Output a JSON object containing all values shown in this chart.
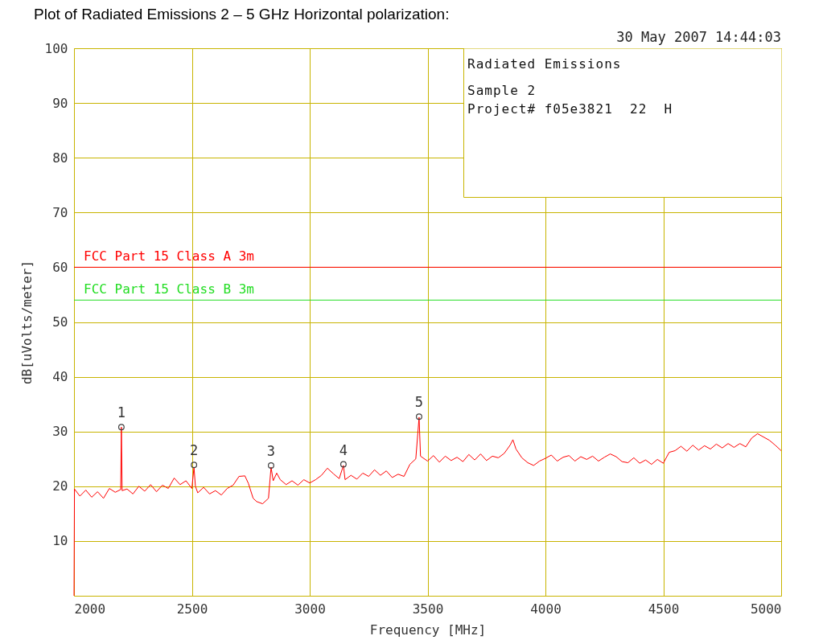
{
  "chart_data": {
    "type": "line",
    "title": "Plot of Radiated Emissions        2 – 5 GHz Horizontal polarization:",
    "xlabel": "Frequency [MHz]",
    "ylabel": "dB[uVolts/meter]",
    "xlim": [
      2000,
      5000
    ],
    "xticks": [
      2000,
      2500,
      3000,
      3500,
      4000,
      4500,
      5000
    ],
    "ylim": [
      0,
      100
    ],
    "yticks": [
      10,
      20,
      30,
      40,
      50,
      60,
      70,
      80,
      90,
      100
    ],
    "grid": true,
    "series": [
      {
        "color": "#ff0000",
        "marker": "none",
        "line_style": "solid",
        "x": [
          2000,
          2002,
          2025,
          2050,
          2075,
          2100,
          2125,
          2150,
          2175,
          2198,
          2201,
          2204,
          2225,
          2250,
          2275,
          2300,
          2325,
          2350,
          2375,
          2400,
          2425,
          2450,
          2475,
          2500,
          2509,
          2515,
          2525,
          2550,
          2575,
          2600,
          2625,
          2650,
          2675,
          2700,
          2725,
          2740,
          2760,
          2775,
          2800,
          2825,
          2836,
          2845,
          2860,
          2875,
          2900,
          2925,
          2950,
          2975,
          3000,
          3025,
          3050,
          3075,
          3100,
          3125,
          3143,
          3150,
          3175,
          3200,
          3225,
          3250,
          3275,
          3300,
          3325,
          3350,
          3375,
          3400,
          3425,
          3450,
          3464,
          3470,
          3500,
          3525,
          3550,
          3575,
          3600,
          3625,
          3650,
          3675,
          3700,
          3725,
          3750,
          3775,
          3800,
          3825,
          3850,
          3862,
          3875,
          3900,
          3925,
          3950,
          3975,
          4000,
          4025,
          4050,
          4075,
          4100,
          4125,
          4150,
          4175,
          4200,
          4225,
          4250,
          4275,
          4300,
          4325,
          4350,
          4375,
          4400,
          4425,
          4450,
          4475,
          4500,
          4525,
          4550,
          4575,
          4600,
          4625,
          4650,
          4675,
          4700,
          4725,
          4750,
          4775,
          4800,
          4825,
          4850,
          4875,
          4900,
          4925,
          4950,
          4975,
          5000
        ],
        "values": [
          0,
          19.5,
          18.2,
          19.3,
          18.0,
          19.0,
          17.8,
          19.6,
          18.9,
          19.4,
          30.8,
          19.2,
          19.5,
          18.6,
          20.0,
          19.1,
          20.3,
          19.0,
          20.2,
          19.6,
          21.5,
          20.3,
          21.0,
          19.6,
          23.5,
          20.0,
          18.8,
          19.8,
          18.6,
          19.2,
          18.4,
          19.6,
          20.2,
          21.8,
          21.9,
          20.5,
          17.8,
          17.2,
          16.8,
          17.8,
          23.5,
          21.0,
          22.4,
          21.2,
          20.3,
          21.0,
          20.2,
          21.2,
          20.6,
          21.2,
          22.0,
          23.3,
          22.3,
          21.4,
          23.8,
          21.2,
          22.0,
          21.3,
          22.4,
          21.8,
          23.0,
          22.0,
          22.8,
          21.6,
          22.2,
          21.8,
          24.0,
          25.0,
          32.6,
          25.5,
          24.6,
          25.6,
          24.4,
          25.5,
          24.7,
          25.3,
          24.5,
          25.8,
          24.8,
          25.9,
          24.7,
          25.5,
          25.2,
          26.0,
          27.5,
          28.5,
          26.8,
          25.2,
          24.3,
          23.8,
          24.6,
          25.1,
          25.7,
          24.6,
          25.3,
          25.6,
          24.6,
          25.4,
          24.9,
          25.5,
          24.6,
          25.3,
          25.9,
          25.4,
          24.5,
          24.3,
          25.2,
          24.2,
          24.8,
          24.0,
          24.9,
          24.2,
          26.2,
          26.5,
          27.3,
          26.4,
          27.5,
          26.6,
          27.4,
          26.8,
          27.7,
          27.0,
          27.8,
          27.1,
          27.8,
          27.2,
          28.8,
          29.6,
          29.0,
          28.4,
          27.5,
          26.5
        ]
      },
      {
        "type": "scatter",
        "color": "#404040",
        "marker": "circle",
        "x": [
          2201,
          2509,
          2836,
          3143,
          3464
        ],
        "values": [
          30.8,
          23.9,
          23.8,
          24.0,
          32.7
        ]
      }
    ],
    "ref_lines": [
      {
        "axis": "y",
        "value": 60,
        "label": "FCC Part 15 Class A 3m",
        "color": "#ff0000",
        "line_style": "solid"
      },
      {
        "axis": "y",
        "value": 54,
        "label": "FCC Part 15 Class B 3m",
        "color": "#22dd22",
        "line_style": "solid"
      }
    ],
    "annotations": [
      "30 May 2007   14:44:03",
      "Radiated Emissions",
      "Sample 2",
      "Project# f05e3821  22  H",
      {
        "text": "1",
        "x": 2201,
        "y": 30.8
      },
      {
        "text": "2",
        "x": 2509,
        "y": 23.9
      },
      {
        "text": "3",
        "x": 2836,
        "y": 23.8
      },
      {
        "text": "4",
        "x": 3143,
        "y": 24.0
      },
      {
        "text": "5",
        "x": 3464,
        "y": 32.7
      }
    ]
  }
}
